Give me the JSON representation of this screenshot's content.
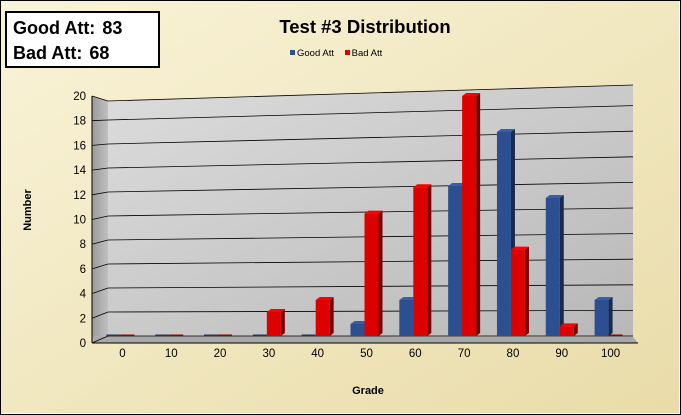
{
  "info_box": {
    "lines": [
      {
        "label": "Good Att:",
        "value": "83"
      },
      {
        "label": "Bad Att:",
        "value": "68"
      }
    ]
  },
  "chart_data": {
    "type": "bar",
    "title": "Test #3 Distribution",
    "xlabel": "Grade",
    "ylabel": "Number",
    "categories": [
      "0",
      "10",
      "20",
      "30",
      "40",
      "50",
      "60",
      "70",
      "80",
      "90",
      "100"
    ],
    "series": [
      {
        "name": "Good Att",
        "color": "#2c4f8f",
        "values": [
          0,
          0,
          0,
          0,
          0,
          1,
          3,
          12.5,
          17,
          11.5,
          3
        ]
      },
      {
        "name": "Bad Att",
        "color": "#dd0000",
        "values": [
          0,
          0,
          0,
          2,
          3,
          10.2,
          12.4,
          20,
          7.2,
          0.8,
          0
        ]
      }
    ],
    "ylim": [
      0,
      20
    ],
    "yticks": [
      0,
      2,
      4,
      6,
      8,
      10,
      12,
      14,
      16,
      18,
      20
    ],
    "grid": true,
    "legend": "top-center",
    "style": "3d-clustered-column",
    "background_gradient": [
      "#f9f3d8",
      "#e9dca9"
    ],
    "plot_wall_color": "#c8c8c8"
  }
}
